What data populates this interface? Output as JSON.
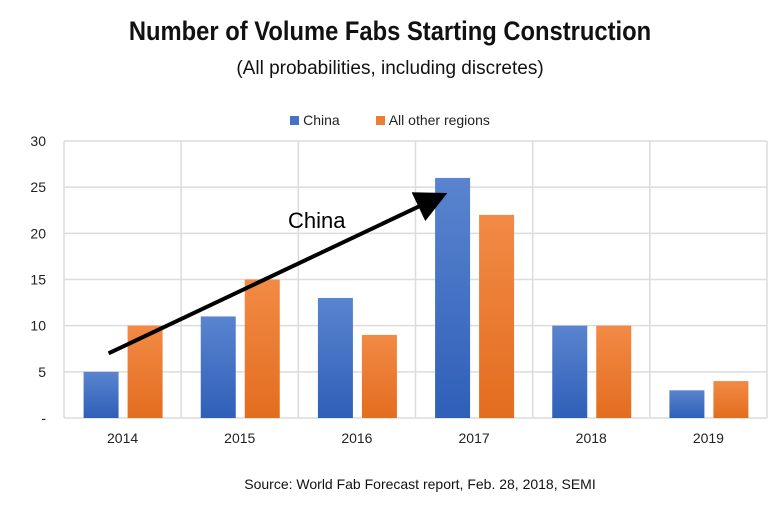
{
  "chart_data": {
    "type": "bar",
    "title": "Number of Volume Fabs Starting Construction",
    "subtitle": "(All probabilities, including discretes)",
    "categories": [
      "2014",
      "2015",
      "2016",
      "2017",
      "2018",
      "2019"
    ],
    "series": [
      {
        "name": "China",
        "color": "#4472c4",
        "values": [
          5,
          11,
          13,
          26,
          10,
          3
        ]
      },
      {
        "name": "All other regions",
        "color": "#ed7d31",
        "values": [
          10,
          15,
          9,
          22,
          10,
          4
        ]
      }
    ],
    "ylim": [
      0,
      30
    ],
    "yticks": [
      0,
      5,
      10,
      15,
      20,
      25,
      30
    ],
    "ytick_labels": [
      "-",
      "5",
      "10",
      "15",
      "20",
      "25",
      "30"
    ],
    "grid": true,
    "legend": "top-center",
    "annotation": {
      "text": "China",
      "type": "arrow",
      "from": {
        "x": "2014",
        "y": 7
      },
      "to": {
        "x": "2017",
        "y": 24
      }
    },
    "source": "Source: World Fab Forecast report, Feb. 28, 2018, SEMI"
  }
}
